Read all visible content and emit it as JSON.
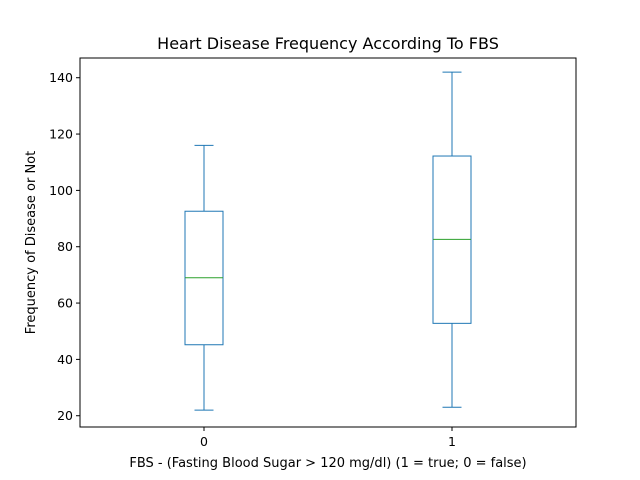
{
  "chart_data": {
    "type": "box",
    "title": "Heart Disease Frequency According To FBS",
    "xlabel": "FBS - (Fasting Blood Sugar > 120 mg/dl) (1 = true; 0 = false)",
    "ylabel": "Frequency of Disease or Not",
    "categories": [
      "0",
      "1"
    ],
    "boxes": [
      {
        "category": "0",
        "whisker_low": 22,
        "q1": 45.2,
        "median": 69,
        "q3": 92.6,
        "whisker_high": 116
      },
      {
        "category": "1",
        "whisker_low": 23,
        "q1": 52.8,
        "median": 82.6,
        "q3": 112.2,
        "whisker_high": 142
      }
    ],
    "yticks": [
      20,
      40,
      60,
      80,
      100,
      120,
      140
    ],
    "ylim": [
      16,
      147
    ],
    "grid": false,
    "colors": {
      "box": "#1f77b4",
      "median": "#2ca02c",
      "axes": "#000000"
    }
  }
}
